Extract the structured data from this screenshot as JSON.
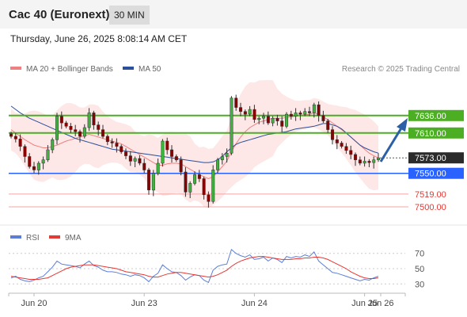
{
  "header": {
    "title": "Cac 40 (Euronext)",
    "timeframe": "30 MIN"
  },
  "datetime": "Thursday, June 26, 2025 8:08:14 AM CET",
  "legend": {
    "items": [
      {
        "label": "MA 20 + Bollinger Bands",
        "color": "#f08080"
      },
      {
        "label": "MA 50",
        "color": "#2b4f9a"
      }
    ],
    "source": "Research © 2025 Trading Central"
  },
  "price_levels": [
    {
      "value": 7636.0,
      "label": "7636.00",
      "kind": "resistance",
      "color": "#4caf23"
    },
    {
      "value": 7610.0,
      "label": "7610.00",
      "kind": "resistance",
      "color": "#4caf23"
    },
    {
      "value": 7573.0,
      "label": "7573.00",
      "kind": "current",
      "color": "#333333"
    },
    {
      "value": 7550.0,
      "label": "7550.00",
      "kind": "pivot",
      "color": "#2962ff"
    },
    {
      "value": 7519.0,
      "label": "7519.00",
      "kind": "support",
      "color": "#e53935"
    },
    {
      "value": 7500.0,
      "label": "7500.00",
      "kind": "support",
      "color": "#e53935"
    }
  ],
  "rsi_legend": {
    "items": [
      {
        "label": "RSI",
        "color": "#5b7fd6"
      },
      {
        "label": "9MA",
        "color": "#e53935"
      }
    ]
  },
  "chart_data": [
    {
      "type": "candlestick",
      "ylim": [
        7480,
        7690
      ],
      "x_labels": [
        "Jun 20",
        "Jun 23",
        "Jun 24",
        "Jun 25",
        "Jun 26"
      ],
      "close": [
        7605,
        7601,
        7590,
        7575,
        7560,
        7555,
        7565,
        7570,
        7585,
        7600,
        7635,
        7625,
        7620,
        7615,
        7612,
        7605,
        7618,
        7640,
        7622,
        7615,
        7605,
        7597,
        7595,
        7590,
        7582,
        7576,
        7568,
        7572,
        7565,
        7555,
        7525,
        7550,
        7565,
        7598,
        7585,
        7575,
        7570,
        7552,
        7522,
        7535,
        7548,
        7542,
        7518,
        7508,
        7555,
        7570,
        7575,
        7580,
        7662,
        7648,
        7642,
        7638,
        7645,
        7630,
        7632,
        7635,
        7625,
        7632,
        7628,
        7620,
        7638,
        7635,
        7640,
        7638,
        7642,
        7640,
        7652,
        7636,
        7628,
        7615,
        7600,
        7595,
        7590,
        7584,
        7578,
        7570,
        7565,
        7568,
        7566,
        7570,
        7573
      ],
      "ma20": [
        7615,
        7610,
        7605,
        7600,
        7596,
        7592,
        7590,
        7588,
        7588,
        7590,
        7592,
        7595,
        7598,
        7600,
        7602,
        7604,
        7606,
        7608,
        7606,
        7604,
        7602,
        7600,
        7598,
        7596,
        7594,
        7590,
        7586,
        7582,
        7578,
        7574,
        7570,
        7566,
        7562,
        7562,
        7564,
        7565,
        7565,
        7564,
        7560,
        7556,
        7552,
        7548,
        7545,
        7542,
        7545,
        7552,
        7560,
        7568,
        7582,
        7594,
        7604,
        7612,
        7618,
        7622,
        7626,
        7628,
        7630,
        7632,
        7632,
        7632,
        7633,
        7634,
        7635,
        7636,
        7637,
        7638,
        7640,
        7638,
        7634,
        7630,
        7625,
        7620,
        7615,
        7610,
        7604,
        7598,
        7592,
        7586,
        7580,
        7576,
        7573
      ],
      "ma50": [
        7650,
        7645,
        7640,
        7636,
        7632,
        7629,
        7626,
        7623,
        7620,
        7617,
        7614,
        7611,
        7608,
        7605,
        7602,
        7600,
        7598,
        7596,
        7594,
        7592,
        7590,
        7588,
        7586,
        7585,
        7584,
        7583,
        7582,
        7581,
        7580,
        7579,
        7578,
        7577,
        7576,
        7575,
        7574,
        7573,
        7572,
        7571,
        7570,
        7569,
        7568,
        7567,
        7566,
        7566,
        7567,
        7570,
        7575,
        7582,
        7588,
        7593,
        7596,
        7598,
        7600,
        7602,
        7604,
        7606,
        7608,
        7609,
        7610,
        7611,
        7612,
        7614,
        7616,
        7617,
        7618,
        7619,
        7620,
        7622,
        7624,
        7624,
        7622,
        7620,
        7616,
        7610,
        7604,
        7598,
        7592,
        7588,
        7585,
        7582,
        7580
      ]
    },
    {
      "type": "line",
      "name": "RSI",
      "yticks": [
        30,
        50,
        70
      ],
      "ylim": [
        22,
        78
      ],
      "rsi": [
        38,
        40,
        36,
        34,
        33,
        35,
        38,
        40,
        46,
        52,
        60,
        56,
        55,
        54,
        53,
        51,
        56,
        60,
        54,
        52,
        48,
        46,
        46,
        45,
        43,
        42,
        40,
        42,
        41,
        38,
        33,
        40,
        44,
        55,
        50,
        46,
        45,
        41,
        35,
        39,
        42,
        41,
        35,
        32,
        48,
        53,
        55,
        56,
        75,
        70,
        67,
        65,
        68,
        62,
        63,
        65,
        60,
        64,
        62,
        58,
        66,
        64,
        66,
        65,
        68,
        66,
        72,
        60,
        55,
        50,
        45,
        44,
        42,
        40,
        38,
        36,
        34,
        36,
        35,
        38,
        40
      ],
      "ma9": [
        40,
        39,
        38,
        37,
        36,
        36,
        36,
        37,
        38,
        41,
        44,
        47,
        50,
        52,
        53,
        54,
        55,
        55,
        55,
        54,
        53,
        52,
        51,
        50,
        48,
        46,
        45,
        44,
        43,
        42,
        40,
        39,
        39,
        41,
        43,
        44,
        45,
        45,
        44,
        43,
        42,
        41,
        40,
        39,
        40,
        42,
        45,
        48,
        53,
        57,
        60,
        62,
        64,
        65,
        66,
        66,
        65,
        64,
        63,
        62,
        62,
        62,
        63,
        63,
        64,
        64,
        65,
        65,
        64,
        62,
        59,
        56,
        53,
        50,
        46,
        43,
        40,
        38,
        37,
        37,
        38
      ]
    }
  ]
}
